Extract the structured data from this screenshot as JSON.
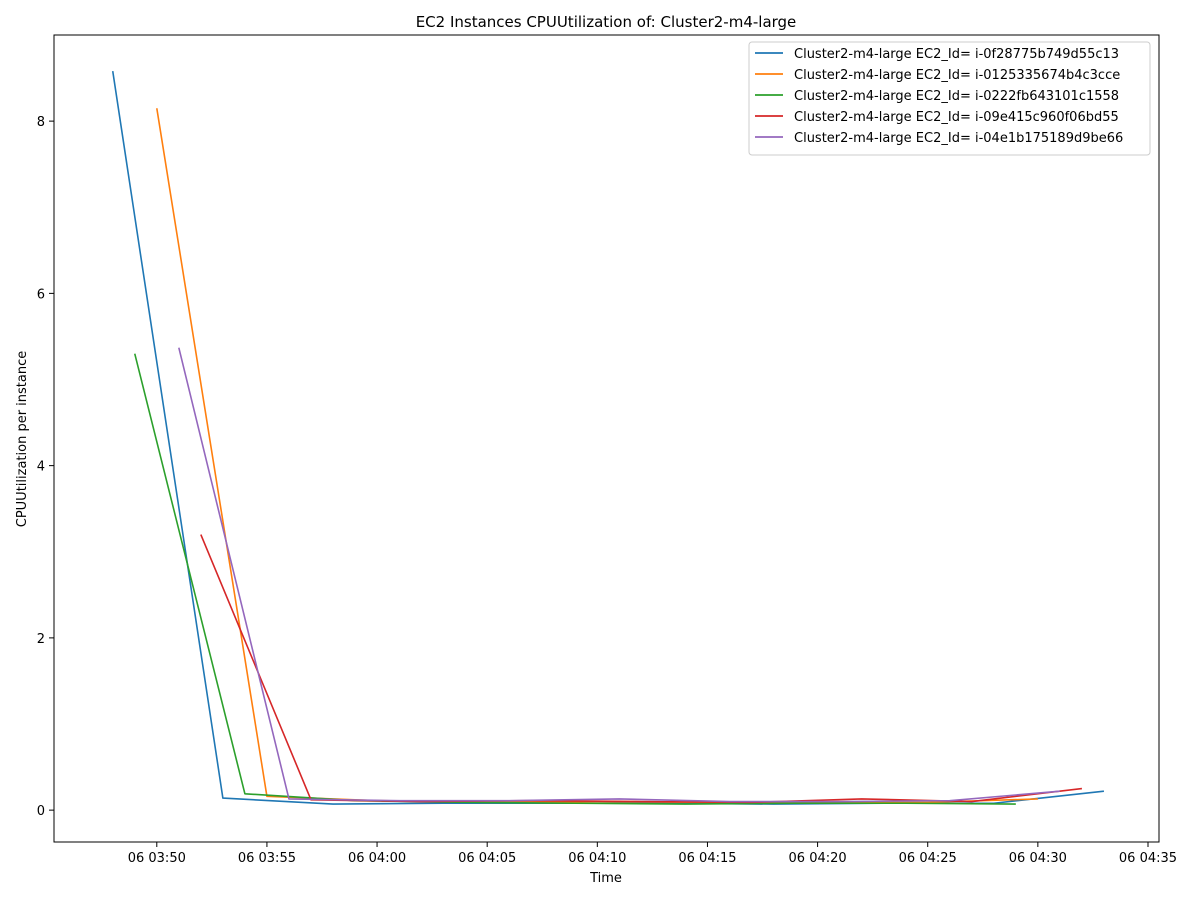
{
  "chart_data": {
    "type": "line",
    "title": "EC2 Instances CPUUtilization of: Cluster2-m4-large",
    "xlabel": "Time",
    "ylabel": "CPUUtilization per instance",
    "xlim": [
      "06 03:45:20",
      "06 04:35:30"
    ],
    "ylim": [
      -0.37,
      9.0
    ],
    "x_ticks": [
      "06 03:50",
      "06 03:55",
      "06 04:00",
      "06 04:05",
      "06 04:10",
      "06 04:15",
      "06 04:20",
      "06 04:25",
      "06 04:30",
      "06 04:35"
    ],
    "y_ticks": [
      "0",
      "2",
      "4",
      "6",
      "8"
    ],
    "grid": false,
    "legend_position": "top-right",
    "series": [
      {
        "name": "Cluster2-m4-large EC2_Id= i-0f28775b749d55c13",
        "color": "#1f77b4",
        "points": [
          [
            "06 03:48",
            8.58
          ],
          [
            "06 03:53",
            0.14
          ],
          [
            "06 03:58",
            0.07
          ],
          [
            "06 04:03",
            0.08
          ],
          [
            "06 04:08",
            0.08
          ],
          [
            "06 04:13",
            0.08
          ],
          [
            "06 04:18",
            0.07
          ],
          [
            "06 04:23",
            0.08
          ],
          [
            "06 04:28",
            0.08
          ],
          [
            "06 04:33",
            0.22
          ]
        ]
      },
      {
        "name": "Cluster2-m4-large EC2_Id= i-0125335674b4c3cce",
        "color": "#ff7f0e",
        "points": [
          [
            "06 03:50",
            8.15
          ],
          [
            "06 03:55",
            0.16
          ],
          [
            "06 04:00",
            0.11
          ],
          [
            "06 04:05",
            0.09
          ],
          [
            "06 04:10",
            0.1
          ],
          [
            "06 04:15",
            0.09
          ],
          [
            "06 04:20",
            0.09
          ],
          [
            "06 04:25",
            0.09
          ],
          [
            "06 04:30",
            0.13
          ]
        ]
      },
      {
        "name": "Cluster2-m4-large EC2_Id= i-0222fb643101c1558",
        "color": "#2ca02c",
        "points": [
          [
            "06 03:49",
            5.3
          ],
          [
            "06 03:54",
            0.19
          ],
          [
            "06 03:59",
            0.11
          ],
          [
            "06 04:04",
            0.09
          ],
          [
            "06 04:09",
            0.08
          ],
          [
            "06 04:14",
            0.07
          ],
          [
            "06 04:19",
            0.08
          ],
          [
            "06 04:24",
            0.08
          ],
          [
            "06 04:29",
            0.07
          ]
        ]
      },
      {
        "name": "Cluster2-m4-large EC2_Id= i-09e415c960f06bd55",
        "color": "#d62728",
        "points": [
          [
            "06 03:52",
            3.2
          ],
          [
            "06 03:57",
            0.12
          ],
          [
            "06 04:02",
            0.1
          ],
          [
            "06 04:07",
            0.11
          ],
          [
            "06 04:12",
            0.1
          ],
          [
            "06 04:17",
            0.09
          ],
          [
            "06 04:22",
            0.13
          ],
          [
            "06 04:27",
            0.1
          ],
          [
            "06 04:32",
            0.25
          ]
        ]
      },
      {
        "name": "Cluster2-m4-large EC2_Id= i-04e1b175189d9be66",
        "color": "#9467bd",
        "points": [
          [
            "06 03:51",
            5.37
          ],
          [
            "06 03:56",
            0.13
          ],
          [
            "06 04:01",
            0.11
          ],
          [
            "06 04:06",
            0.11
          ],
          [
            "06 04:11",
            0.13
          ],
          [
            "06 04:16",
            0.1
          ],
          [
            "06 04:21",
            0.1
          ],
          [
            "06 04:26",
            0.11
          ],
          [
            "06 04:31",
            0.22
          ]
        ]
      }
    ]
  }
}
